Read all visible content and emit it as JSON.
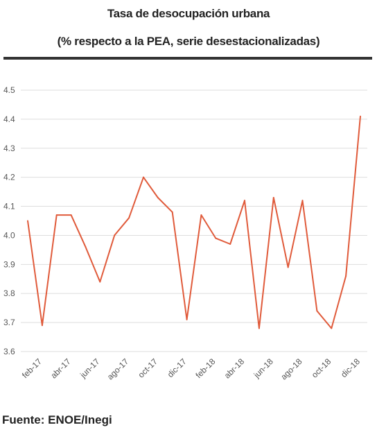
{
  "chart_data": {
    "type": "line",
    "title": "Tasa de desocupación urbana",
    "subtitle": "(% respecto a la PEA, serie desestacionalizadas)",
    "xlabel": "",
    "ylabel": "",
    "x": [
      "ene-17",
      "feb-17",
      "mar-17",
      "abr-17",
      "may-17",
      "jun-17",
      "jul-17",
      "ago-17",
      "sep-17",
      "oct-17",
      "nov-17",
      "dic-17",
      "ene-18",
      "feb-18",
      "mar-18",
      "abr-18",
      "may-18",
      "jun-18",
      "jul-18",
      "ago-18",
      "sep-18",
      "oct-18",
      "nov-18",
      "dic-18"
    ],
    "x_tick_labels": [
      "feb-17",
      "abr-17",
      "jun-17",
      "ago-17",
      "oct-17",
      "dic-17",
      "feb-18",
      "abr-18",
      "jun-18",
      "ago-18",
      "oct-18",
      "dic-18"
    ],
    "y_ticks": [
      "3.6",
      "3.7",
      "3.8",
      "3.9",
      "4.0",
      "4.1",
      "4.2",
      "4.3",
      "4.4",
      "4.5"
    ],
    "ylim": [
      3.6,
      4.5
    ],
    "grid": true,
    "series": [
      {
        "values": [
          4.05,
          3.69,
          4.07,
          4.07,
          3.96,
          3.84,
          4.0,
          4.06,
          4.2,
          4.13,
          4.08,
          3.71,
          4.07,
          3.99,
          3.97,
          4.12,
          3.68,
          4.13,
          3.89,
          4.12,
          3.74,
          3.68,
          3.86,
          4.41
        ],
        "color": "#e05a3a"
      }
    ]
  },
  "source": "Fuente: ENOE/Inegi"
}
